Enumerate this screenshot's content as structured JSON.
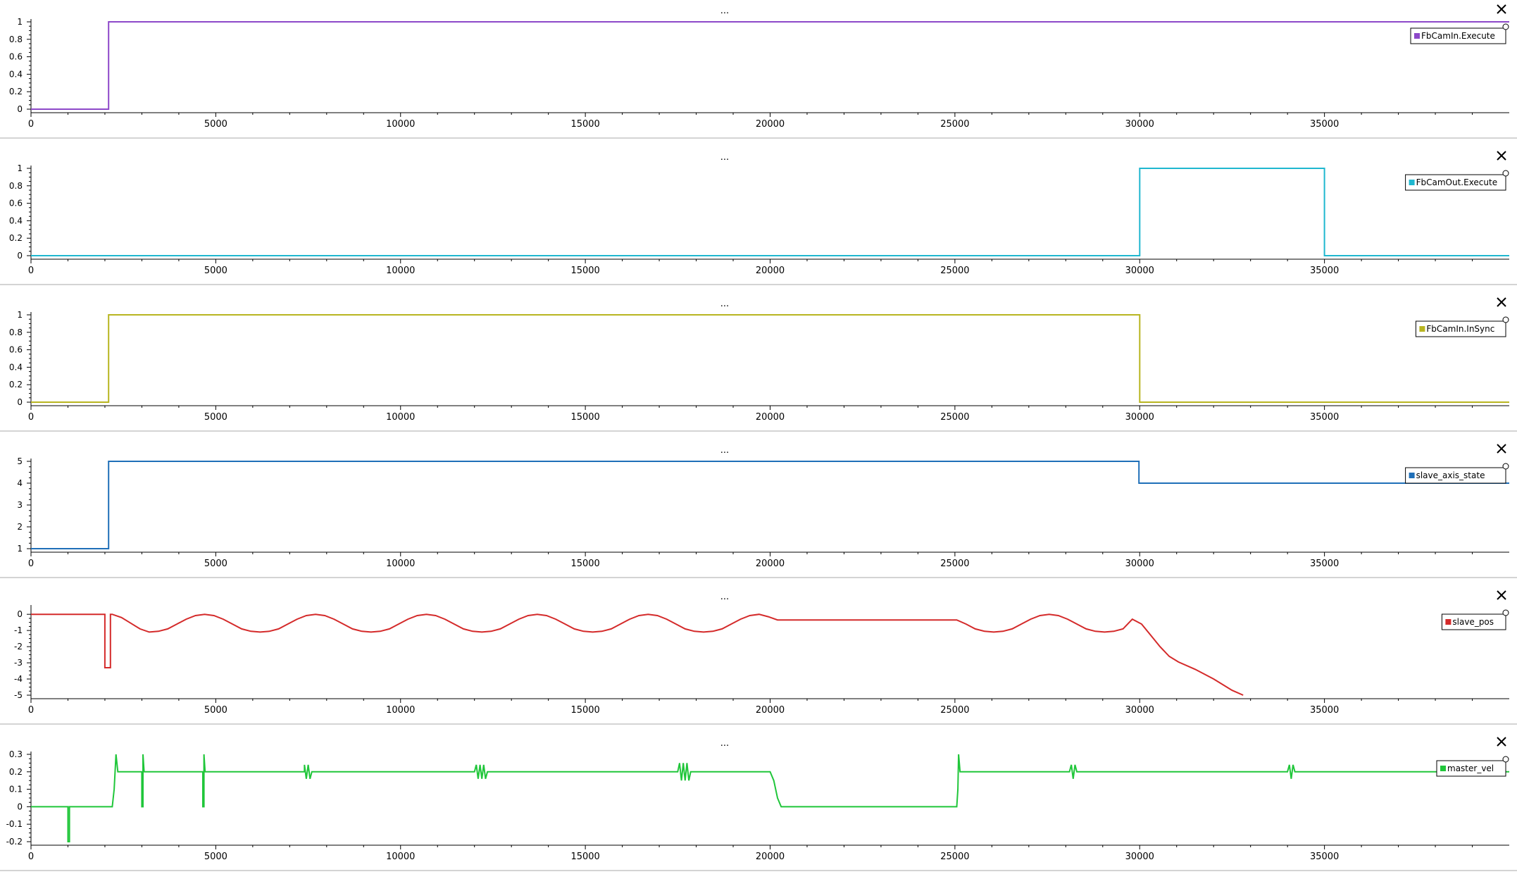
{
  "ui": {
    "menu_label": "...",
    "close_label": "✕"
  },
  "chart_data": [
    {
      "type": "line",
      "title": "",
      "xlabel": "",
      "ylabel": "",
      "xlim": [
        0,
        40000
      ],
      "ylim": [
        0,
        1
      ],
      "xticks": [
        0,
        5000,
        10000,
        15000,
        20000,
        25000,
        30000,
        35000
      ],
      "yticks": [
        0,
        0.2,
        0.4,
        0.6,
        0.8,
        1
      ],
      "legend": "top-right",
      "grid": false,
      "series": [
        {
          "name": "FbCamIn.Execute",
          "color": "#8d48c9",
          "points": [
            [
              0,
              0
            ],
            [
              2100,
              0
            ],
            [
              2100,
              1
            ],
            [
              40000,
              1
            ]
          ]
        }
      ]
    },
    {
      "type": "line",
      "title": "",
      "xlabel": "",
      "ylabel": "",
      "xlim": [
        0,
        40000
      ],
      "ylim": [
        0,
        1
      ],
      "xticks": [
        0,
        5000,
        10000,
        15000,
        20000,
        25000,
        30000,
        35000
      ],
      "yticks": [
        0,
        0.2,
        0.4,
        0.6,
        0.8,
        1
      ],
      "legend": "top-right",
      "grid": false,
      "series": [
        {
          "name": "FbCamOut.Execute",
          "color": "#1fb7cf",
          "points": [
            [
              0,
              0
            ],
            [
              30000,
              0
            ],
            [
              30000,
              1
            ],
            [
              35000,
              1
            ],
            [
              35000,
              0
            ],
            [
              40000,
              0
            ]
          ]
        }
      ]
    },
    {
      "type": "line",
      "title": "",
      "xlabel": "",
      "ylabel": "",
      "xlim": [
        0,
        40000
      ],
      "ylim": [
        0,
        1
      ],
      "xticks": [
        0,
        5000,
        10000,
        15000,
        20000,
        25000,
        30000,
        35000
      ],
      "yticks": [
        0,
        0.2,
        0.4,
        0.6,
        0.8,
        1
      ],
      "legend": "top-right",
      "grid": false,
      "series": [
        {
          "name": "FbCamIn.InSync",
          "color": "#b8b521",
          "points": [
            [
              0,
              0
            ],
            [
              2100,
              0
            ],
            [
              2100,
              1
            ],
            [
              30000,
              1
            ],
            [
              30000,
              0
            ],
            [
              40000,
              0
            ]
          ]
        }
      ]
    },
    {
      "type": "line",
      "title": "",
      "xlabel": "",
      "ylabel": "",
      "xlim": [
        0,
        40000
      ],
      "ylim": [
        1,
        5
      ],
      "xticks": [
        0,
        5000,
        10000,
        15000,
        20000,
        25000,
        30000,
        35000
      ],
      "yticks": [
        1,
        2,
        3,
        4,
        5
      ],
      "legend": "top-right",
      "grid": false,
      "series": [
        {
          "name": "slave_axis_state",
          "color": "#1f6fb8",
          "points": [
            [
              0,
              1
            ],
            [
              2100,
              1
            ],
            [
              2100,
              5
            ],
            [
              29980,
              5
            ],
            [
              29980,
              4
            ],
            [
              40000,
              4
            ]
          ]
        }
      ]
    },
    {
      "type": "line",
      "title": "",
      "xlabel": "",
      "ylabel": "",
      "xlim": [
        0,
        40000
      ],
      "ylim": [
        -5,
        0.4
      ],
      "xticks": [
        0,
        5000,
        10000,
        15000,
        20000,
        25000,
        30000,
        35000
      ],
      "yticks": [
        0,
        -1,
        -2,
        -3,
        -4,
        -5
      ],
      "legend": "top-right",
      "grid": false,
      "series": [
        {
          "name": "slave_pos",
          "color": "#d42a2a",
          "points": [
            [
              0,
              0
            ],
            [
              2000,
              0
            ],
            [
              2000,
              -3.3
            ],
            [
              2150,
              -3.3
            ],
            [
              2150,
              0
            ],
            [
              2200,
              0
            ],
            [
              2450,
              -0.2
            ],
            [
              2700,
              -0.55
            ],
            [
              2950,
              -0.9
            ],
            [
              3200,
              -1.1
            ],
            [
              3450,
              -1.05
            ],
            [
              3700,
              -0.9
            ],
            [
              3950,
              -0.6
            ],
            [
              4200,
              -0.3
            ],
            [
              4450,
              -0.08
            ],
            [
              4700,
              0
            ],
            [
              4950,
              -0.08
            ],
            [
              5200,
              -0.3
            ],
            [
              5450,
              -0.6
            ],
            [
              5700,
              -0.9
            ],
            [
              5950,
              -1.05
            ],
            [
              6200,
              -1.1
            ],
            [
              6450,
              -1.05
            ],
            [
              6700,
              -0.9
            ],
            [
              6950,
              -0.6
            ],
            [
              7200,
              -0.3
            ],
            [
              7450,
              -0.08
            ],
            [
              7700,
              0
            ],
            [
              7950,
              -0.08
            ],
            [
              8200,
              -0.3
            ],
            [
              8450,
              -0.6
            ],
            [
              8700,
              -0.9
            ],
            [
              8950,
              -1.05
            ],
            [
              9200,
              -1.1
            ],
            [
              9450,
              -1.05
            ],
            [
              9700,
              -0.9
            ],
            [
              9950,
              -0.6
            ],
            [
              10200,
              -0.3
            ],
            [
              10450,
              -0.08
            ],
            [
              10700,
              0
            ],
            [
              10950,
              -0.08
            ],
            [
              11200,
              -0.3
            ],
            [
              11450,
              -0.6
            ],
            [
              11700,
              -0.9
            ],
            [
              11950,
              -1.05
            ],
            [
              12200,
              -1.1
            ],
            [
              12450,
              -1.05
            ],
            [
              12700,
              -0.9
            ],
            [
              12950,
              -0.6
            ],
            [
              13200,
              -0.3
            ],
            [
              13450,
              -0.08
            ],
            [
              13700,
              0
            ],
            [
              13950,
              -0.08
            ],
            [
              14200,
              -0.3
            ],
            [
              14450,
              -0.6
            ],
            [
              14700,
              -0.9
            ],
            [
              14950,
              -1.05
            ],
            [
              15200,
              -1.1
            ],
            [
              15450,
              -1.05
            ],
            [
              15700,
              -0.9
            ],
            [
              15950,
              -0.6
            ],
            [
              16200,
              -0.3
            ],
            [
              16450,
              -0.08
            ],
            [
              16700,
              0
            ],
            [
              16950,
              -0.08
            ],
            [
              17200,
              -0.3
            ],
            [
              17450,
              -0.6
            ],
            [
              17700,
              -0.9
            ],
            [
              17950,
              -1.05
            ],
            [
              18200,
              -1.1
            ],
            [
              18450,
              -1.05
            ],
            [
              18700,
              -0.9
            ],
            [
              18950,
              -0.6
            ],
            [
              19200,
              -0.3
            ],
            [
              19450,
              -0.08
            ],
            [
              19700,
              0
            ],
            [
              19950,
              -0.15
            ],
            [
              20200,
              -0.35
            ],
            [
              25050,
              -0.35
            ],
            [
              25300,
              -0.6
            ],
            [
              25550,
              -0.9
            ],
            [
              25800,
              -1.05
            ],
            [
              26050,
              -1.1
            ],
            [
              26300,
              -1.05
            ],
            [
              26550,
              -0.9
            ],
            [
              26800,
              -0.6
            ],
            [
              27050,
              -0.3
            ],
            [
              27300,
              -0.08
            ],
            [
              27550,
              0
            ],
            [
              27800,
              -0.08
            ],
            [
              28050,
              -0.3
            ],
            [
              28300,
              -0.6
            ],
            [
              28550,
              -0.9
            ],
            [
              28800,
              -1.05
            ],
            [
              29050,
              -1.1
            ],
            [
              29300,
              -1.05
            ],
            [
              29550,
              -0.9
            ],
            [
              29800,
              -0.3
            ],
            [
              30050,
              -0.6
            ],
            [
              30300,
              -1.3
            ],
            [
              30550,
              -2.0
            ],
            [
              30800,
              -2.6
            ],
            [
              31050,
              -2.95
            ],
            [
              31500,
              -3.4
            ],
            [
              32000,
              -4.0
            ],
            [
              32500,
              -4.7
            ],
            [
              32800,
              -5.0
            ]
          ]
        }
      ]
    },
    {
      "type": "line",
      "title": "",
      "xlabel": "",
      "ylabel": "",
      "xlim": [
        0,
        40000
      ],
      "ylim": [
        -0.2,
        0.3
      ],
      "xticks": [
        0,
        5000,
        10000,
        15000,
        20000,
        25000,
        30000,
        35000
      ],
      "yticks": [
        0.3,
        0.2,
        0.1,
        0,
        -0.1,
        -0.2
      ],
      "legend": "top-right",
      "grid": false,
      "series": [
        {
          "name": "master_vel",
          "color": "#20c63a",
          "points": [
            [
              0,
              0
            ],
            [
              1000,
              0
            ],
            [
              1000,
              -0.2
            ],
            [
              1040,
              -0.2
            ],
            [
              1040,
              0
            ],
            [
              2200,
              0
            ],
            [
              2250,
              0.1
            ],
            [
              2300,
              0.3
            ],
            [
              2350,
              0.2
            ],
            [
              3000,
              0.2
            ],
            [
              3000,
              0
            ],
            [
              3030,
              0
            ],
            [
              3030,
              0.3
            ],
            [
              3060,
              0.2
            ],
            [
              4650,
              0.2
            ],
            [
              4650,
              0
            ],
            [
              4680,
              0
            ],
            [
              4680,
              0.3
            ],
            [
              4710,
              0.2
            ],
            [
              7400,
              0.2
            ],
            [
              7400,
              0.24
            ],
            [
              7450,
              0.16
            ],
            [
              7500,
              0.24
            ],
            [
              7550,
              0.16
            ],
            [
              7600,
              0.2
            ],
            [
              12000,
              0.2
            ],
            [
              12050,
              0.24
            ],
            [
              12100,
              0.16
            ],
            [
              12150,
              0.24
            ],
            [
              12200,
              0.16
            ],
            [
              12250,
              0.24
            ],
            [
              12300,
              0.16
            ],
            [
              12350,
              0.2
            ],
            [
              17500,
              0.2
            ],
            [
              17550,
              0.25
            ],
            [
              17600,
              0.15
            ],
            [
              17650,
              0.25
            ],
            [
              17700,
              0.15
            ],
            [
              17750,
              0.25
            ],
            [
              17800,
              0.15
            ],
            [
              17850,
              0.2
            ],
            [
              20000,
              0.2
            ],
            [
              20100,
              0.15
            ],
            [
              20200,
              0.05
            ],
            [
              20300,
              0
            ],
            [
              25050,
              0
            ],
            [
              25080,
              0.1
            ],
            [
              25100,
              0.3
            ],
            [
              25140,
              0.2
            ],
            [
              28100,
              0.2
            ],
            [
              28150,
              0.24
            ],
            [
              28200,
              0.16
            ],
            [
              28250,
              0.24
            ],
            [
              28300,
              0.2
            ],
            [
              34000,
              0.2
            ],
            [
              34050,
              0.24
            ],
            [
              34100,
              0.16
            ],
            [
              34150,
              0.24
            ],
            [
              34200,
              0.2
            ],
            [
              40000,
              0.2
            ]
          ]
        }
      ]
    }
  ]
}
